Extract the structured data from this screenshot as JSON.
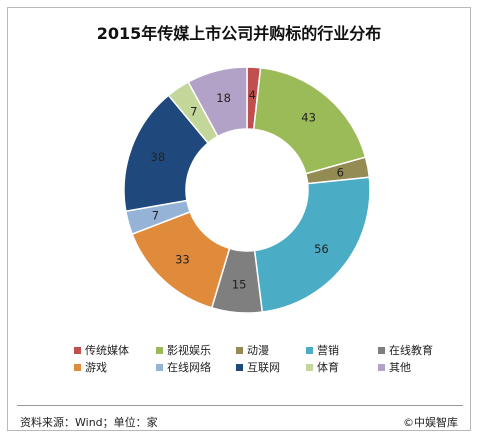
{
  "chart_data": {
    "type": "pie",
    "title": "2015年传媒上市公司并购标的行业分布",
    "categories": [
      "传统媒体",
      "影视娱乐",
      "动漫",
      "营销",
      "在线教育",
      "游戏",
      "在线网络",
      "互联网",
      "体育",
      "其他"
    ],
    "values": [
      4,
      43,
      6,
      56,
      15,
      33,
      7,
      38,
      7,
      18
    ],
    "colors": [
      "#c0504d",
      "#9bbb59",
      "#948a54",
      "#4bacc6",
      "#7f7f7f",
      "#e08a3c",
      "#95b3d7",
      "#1f497d",
      "#c4d79b",
      "#b3a2c7"
    ],
    "donut": true,
    "legend_position": "bottom"
  },
  "footer": {
    "source": "资料来源：Wind；单位：家",
    "brand": "©中娱智库"
  }
}
